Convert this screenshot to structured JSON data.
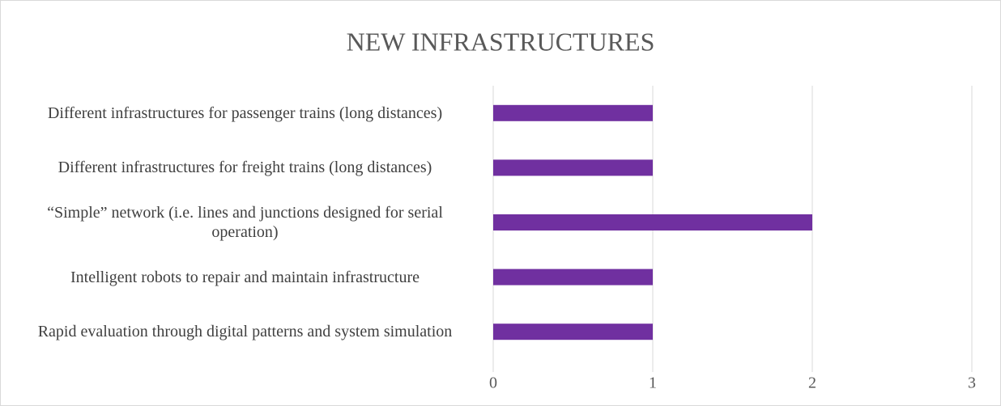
{
  "chart_data": {
    "type": "bar",
    "orientation": "horizontal",
    "title": "NEW INFRASTRUCTURES",
    "categories": [
      "Different infrastructures for passenger trains (long distances)",
      "Different infrastructures for freight trains (long distances)",
      "“Simple” network (i.e. lines and junctions designed for serial operation)",
      "Intelligent robots to repair and maintain infrastructure",
      "Rapid evaluation through digital patterns and system simulation"
    ],
    "values": [
      1,
      1,
      2,
      1,
      1
    ],
    "color": "#7030a0",
    "xlim": [
      0,
      3
    ],
    "xticks": [
      0,
      1,
      2,
      3
    ],
    "grid": true
  }
}
